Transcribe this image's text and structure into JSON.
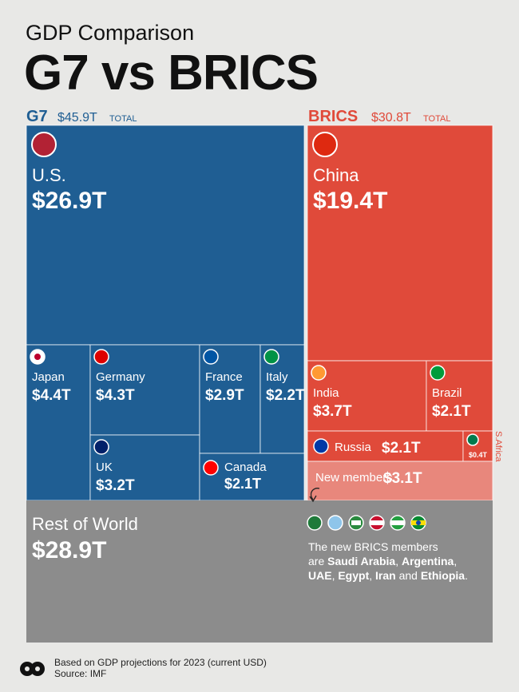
{
  "chart_data": {
    "type": "treemap",
    "title": "GDP Comparison",
    "subtitle": "G7 vs BRICS",
    "groups": [
      {
        "name": "G7",
        "total": 45.9,
        "total_label": "$45.9T",
        "total_word": "TOTAL",
        "color": "#1f5e93",
        "items": [
          {
            "name": "U.S.",
            "value": 26.9,
            "value_label": "$26.9T"
          },
          {
            "name": "Japan",
            "value": 4.4,
            "value_label": "$4.4T"
          },
          {
            "name": "Germany",
            "value": 4.3,
            "value_label": "$4.3T"
          },
          {
            "name": "UK",
            "value": 3.2,
            "value_label": "$3.2T"
          },
          {
            "name": "France",
            "value": 2.9,
            "value_label": "$2.9T"
          },
          {
            "name": "Italy",
            "value": 2.2,
            "value_label": "$2.2T"
          },
          {
            "name": "Canada",
            "value": 2.1,
            "value_label": "$2.1T"
          }
        ]
      },
      {
        "name": "BRICS",
        "total": 30.8,
        "total_label": "$30.8T",
        "total_word": "TOTAL",
        "color": "#e04a3a",
        "items": [
          {
            "name": "China",
            "value": 19.4,
            "value_label": "$19.4T"
          },
          {
            "name": "India",
            "value": 3.7,
            "value_label": "$3.7T"
          },
          {
            "name": "Brazil",
            "value": 2.1,
            "value_label": "$2.1T"
          },
          {
            "name": "Russia",
            "value": 2.1,
            "value_label": "$2.1T"
          },
          {
            "name": "S.Africa",
            "value": 0.4,
            "value_label": "$0.4T"
          },
          {
            "name": "New members",
            "value": 3.1,
            "value_label": "$3.1T",
            "color": "#e8877c"
          }
        ]
      }
    ],
    "rest": {
      "name": "Rest of World",
      "value": 28.9,
      "value_label": "$28.9T",
      "color": "#8c8c8c"
    },
    "note": [
      [
        {
          "text": "The new BRICS members"
        }
      ],
      [
        {
          "text": "are "
        },
        {
          "text": "Saudi Arabia",
          "bold": true
        },
        {
          "text": ", "
        },
        {
          "text": "Argentina",
          "bold": true
        },
        {
          "text": ","
        }
      ],
      [
        {
          "text": "UAE",
          "bold": true
        },
        {
          "text": ", "
        },
        {
          "text": "Egypt",
          "bold": true
        },
        {
          "text": ", "
        },
        {
          "text": "Iran",
          "bold": true
        },
        {
          "text": " and "
        },
        {
          "text": "Ethiopia",
          "bold": true
        },
        {
          "text": "."
        }
      ]
    ],
    "footer": [
      "Based on GDP projections for 2023 (current USD)",
      "Source: IMF"
    ]
  }
}
